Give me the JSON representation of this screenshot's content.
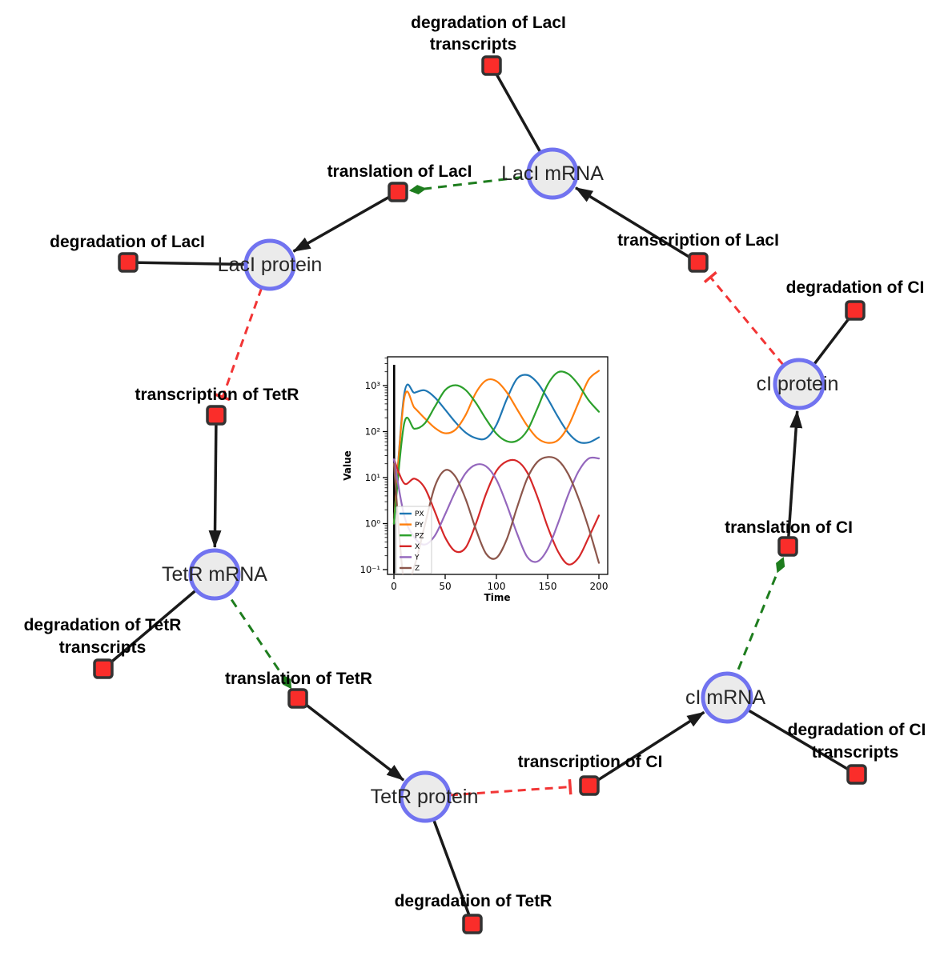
{
  "network": {
    "species": {
      "laci_mrna": {
        "label": "LacI mRNA"
      },
      "laci_protein": {
        "label": "LacI protein"
      },
      "tetr_mrna": {
        "label": "TetR mRNA"
      },
      "tetr_protein": {
        "label": "TetR protein"
      },
      "ci_mrna": {
        "label": "cI mRNA"
      },
      "ci_protein": {
        "label": "cI protein"
      }
    },
    "reactions": {
      "deg_laci_tx": {
        "line1": "degradation of LacI",
        "line2": "transcripts"
      },
      "translation_laci": {
        "label": "translation of LacI"
      },
      "deg_laci": {
        "label": "degradation of LacI"
      },
      "transcription_laci": {
        "label": "transcription of LacI"
      },
      "deg_ci": {
        "label": "degradation of CI"
      },
      "transcription_tetr": {
        "label": "transcription of TetR"
      },
      "translation_ci": {
        "label": "translation of CI"
      },
      "deg_tetr_tx": {
        "line1": "degradation of TetR",
        "line2": "transcripts"
      },
      "translation_tetr": {
        "label": "translation of TetR"
      },
      "transcription_ci": {
        "label": "transcription of CI"
      },
      "deg_ci_tx": {
        "line1": "degradation of CI",
        "line2": "transcripts"
      },
      "deg_tetr": {
        "label": "degradation of TetR"
      }
    },
    "colors": {
      "edge": "#1a1a1a",
      "activation": "#1e7d1e",
      "inhibition": "#f23535",
      "species_fill": "#ebebeb",
      "species_border": "#7173f0",
      "reaction_fill": "#fa2d2a",
      "reaction_border": "#333333"
    }
  },
  "chart_data": {
    "type": "line",
    "title": "",
    "xlabel": "Time",
    "ylabel": "Value",
    "yscale": "log",
    "xlim": [
      -7,
      209
    ],
    "ylim": [
      0.08,
      4200
    ],
    "legend_position": "lower left",
    "grid": false,
    "annotations": [
      {
        "type": "vline",
        "t": 0.2
      }
    ],
    "xaxis": {
      "ticks": [
        0,
        50,
        100,
        150,
        200
      ]
    },
    "yaxis": {
      "ticks": [
        0.1,
        1,
        10,
        100,
        1000
      ],
      "tick_labels": [
        "10⁻¹",
        "10⁰",
        "10¹",
        "10²",
        "10³"
      ]
    },
    "t": [
      0,
      10,
      20,
      30,
      40,
      50,
      60,
      70,
      80,
      90,
      100,
      110,
      120,
      130,
      140,
      150,
      160,
      170,
      180,
      190,
      200
    ],
    "series": [
      {
        "name": "PX",
        "color": "#1f77b4",
        "values": [
          1,
          640,
          700,
          790,
          550,
          300,
          160,
          95,
          72,
          72,
          140,
          500,
          1400,
          1700,
          1150,
          520,
          210,
          95,
          60,
          58,
          75
        ]
      },
      {
        "name": "PY",
        "color": "#ff7f0e",
        "values": [
          1,
          520,
          330,
          195,
          120,
          92,
          110,
          230,
          700,
          1300,
          1250,
          720,
          310,
          135,
          72,
          57,
          65,
          130,
          420,
          1350,
          2100
        ]
      },
      {
        "name": "PZ",
        "color": "#2ca02c",
        "values": [
          1,
          150,
          115,
          150,
          350,
          800,
          1020,
          800,
          420,
          185,
          90,
          62,
          63,
          105,
          320,
          1050,
          1950,
          1800,
          1050,
          480,
          270
        ]
      },
      {
        "name": "X",
        "color": "#d62728",
        "values": [
          25,
          7.5,
          9.5,
          6,
          1.8,
          0.5,
          0.25,
          0.3,
          1.0,
          4.5,
          14,
          22.5,
          23,
          13,
          3.8,
          0.85,
          0.25,
          0.13,
          0.18,
          0.5,
          1.5
        ]
      },
      {
        "name": "Y",
        "color": "#9467bd",
        "values": [
          25,
          1.5,
          0.5,
          0.35,
          0.55,
          1.6,
          5,
          12.5,
          19,
          17.5,
          9,
          2.6,
          0.62,
          0.19,
          0.15,
          0.28,
          1.0,
          4.2,
          13.5,
          26,
          26
        ]
      },
      {
        "name": "Z",
        "color": "#8c564b",
        "values": [
          20,
          0.05,
          0.12,
          0.9,
          6.5,
          14.5,
          10.5,
          3.4,
          0.75,
          0.22,
          0.18,
          0.45,
          2.2,
          9.5,
          22,
          28,
          24,
          12,
          3.6,
          0.8,
          0.14
        ]
      }
    ]
  }
}
